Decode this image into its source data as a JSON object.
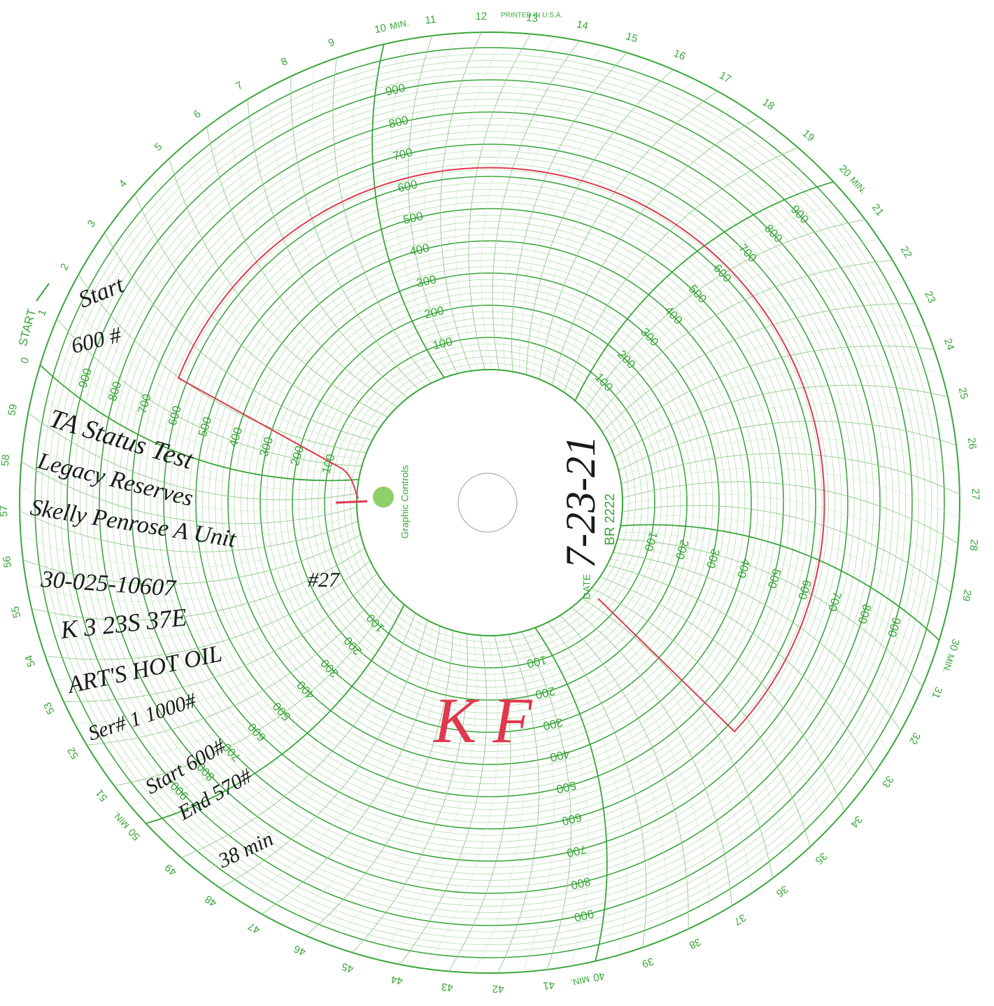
{
  "header": {
    "printed": "PRINTED IN U.S.A.",
    "start": "START",
    "min": "MIN.",
    "brand": "Graphic Controls",
    "date_label": "DATE",
    "chart_code": "BR 2222"
  },
  "minute_labels": [
    0,
    1,
    2,
    3,
    4,
    5,
    6,
    7,
    8,
    9,
    10,
    11,
    12,
    13,
    14,
    15,
    16,
    17,
    18,
    19,
    20,
    21,
    22,
    23,
    24,
    25,
    26,
    27,
    28,
    29,
    30,
    31,
    32,
    33,
    34,
    35,
    36,
    37,
    38,
    39,
    40,
    41,
    42,
    43,
    44,
    45,
    46,
    47,
    48,
    49,
    50,
    51,
    52,
    53,
    54,
    55,
    56,
    57,
    58,
    59
  ],
  "scale_labels": [
    100,
    200,
    300,
    400,
    500,
    600,
    700,
    800,
    900
  ],
  "notes": {
    "start": "Start",
    "start_pressure": "600 #",
    "test": "TA Status Test",
    "operator": "Legacy Reserves",
    "lease": "Skelly Penrose A Unit",
    "well": "#27",
    "api": "30-025-10607",
    "location": "K 3 23S 37E",
    "company": "ART'S HOT OIL",
    "serial": "Ser# 1 1000#",
    "start_reading": "Start 600#",
    "end_reading": "End 570#",
    "duration": "38 min",
    "date": "7-23-21",
    "initials": "K F"
  }
}
